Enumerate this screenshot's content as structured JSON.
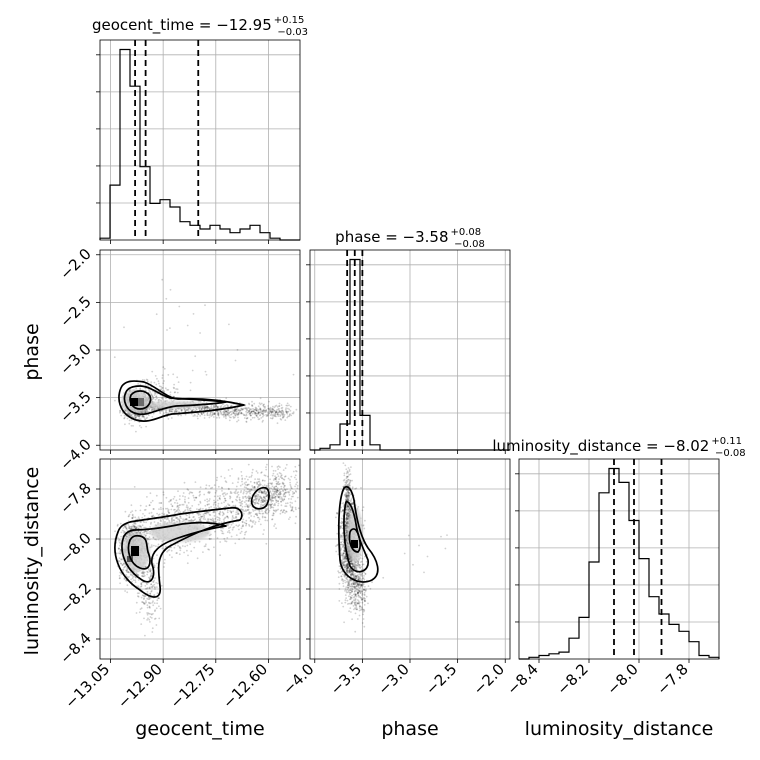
{
  "chart_data": {
    "type": "corner",
    "parameters": [
      "geocent_time",
      "phase",
      "luminosity_distance"
    ],
    "axis_labels": {
      "geocent_time": "geocent_time",
      "phase": "phase",
      "luminosity_distance": "luminosity_distance"
    },
    "titles": [
      {
        "param": "geocent_time",
        "prefix": "geocent_time = −12.95",
        "sup": "+0.15",
        "sub": "−0.03"
      },
      {
        "param": "phase",
        "prefix": "phase = −3.58",
        "sup": "+0.08",
        "sub": "−0.08"
      },
      {
        "param": "luminosity_distance",
        "prefix": "luminosity_distance = −8.02",
        "sup": "+0.11",
        "sub": "−0.08"
      }
    ],
    "ranges": {
      "geocent_time": [
        -13.08,
        -12.51
      ],
      "phase": [
        -4.05,
        -1.95
      ],
      "luminosity_distance": [
        -8.48,
        -7.68
      ]
    },
    "ticks": {
      "geocent_time": [
        -13.05,
        -12.9,
        -12.75,
        -12.6
      ],
      "phase": [
        -4.0,
        -3.5,
        -3.0,
        -2.5,
        -2.0
      ],
      "luminosity_distance": [
        -8.4,
        -8.2,
        -8.0,
        -7.8
      ]
    },
    "tick_labels": {
      "geocent_time": [
        "−13.05",
        "−12.90",
        "−12.75",
        "−12.60"
      ],
      "phase": [
        "−4.0",
        "−3.5",
        "−3.0",
        "−2.5",
        "−2.0"
      ],
      "luminosity_distance": [
        "−8.4",
        "−8.2",
        "−8.0",
        "−7.8"
      ]
    },
    "quantiles": {
      "geocent_time": [
        -12.98,
        -12.95,
        -12.8
      ],
      "phase": [
        -3.66,
        -3.58,
        -3.5
      ],
      "luminosity_distance": [
        -8.1,
        -8.02,
        -7.91
      ]
    },
    "histograms": {
      "geocent_time": {
        "edges_start": -13.08,
        "bin_width": 0.0285,
        "counts": [
          0.5,
          15,
          52,
          42,
          20,
          10,
          11,
          9,
          5,
          4,
          3,
          4,
          3,
          2,
          3,
          4,
          2,
          0.5,
          0,
          0
        ]
      },
      "phase": {
        "edges_start": -4.05,
        "bin_width": 0.105,
        "counts": [
          0,
          1,
          3,
          15,
          110,
          20,
          3,
          0,
          0,
          0,
          0,
          0,
          0,
          0,
          0,
          0,
          0,
          0,
          0,
          0
        ]
      },
      "luminosity_distance": {
        "edges_start": -8.48,
        "bin_width": 0.04,
        "counts": [
          0,
          0.5,
          1,
          1.5,
          2,
          6,
          12,
          28,
          48,
          55,
          51,
          40,
          29,
          18,
          13,
          10,
          8,
          5,
          1,
          0.5
        ]
      }
    },
    "grid": true
  }
}
